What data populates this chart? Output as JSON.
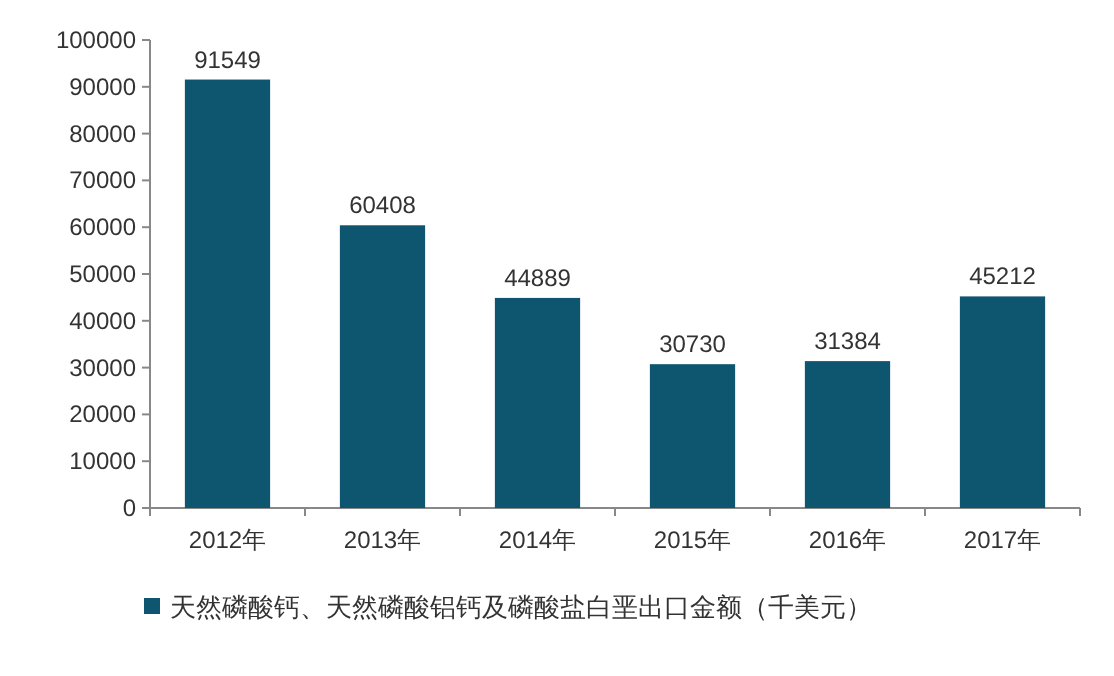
{
  "chart_data": {
    "type": "bar",
    "categories": [
      "2012年",
      "2013年",
      "2014年",
      "2015年",
      "2016年",
      "2017年"
    ],
    "series": [
      {
        "name": "天然磷酸钙、天然磷酸铝钙及磷酸盐白垩出口金额（千美元）",
        "color": "#0e5570",
        "values": [
          91549,
          60408,
          44889,
          30730,
          31384,
          45212
        ]
      }
    ],
    "ylim": [
      0,
      100000
    ],
    "yticks": [
      0,
      10000,
      20000,
      30000,
      40000,
      50000,
      60000,
      70000,
      80000,
      90000,
      100000
    ],
    "data_labels": true,
    "legend": "bottom"
  }
}
